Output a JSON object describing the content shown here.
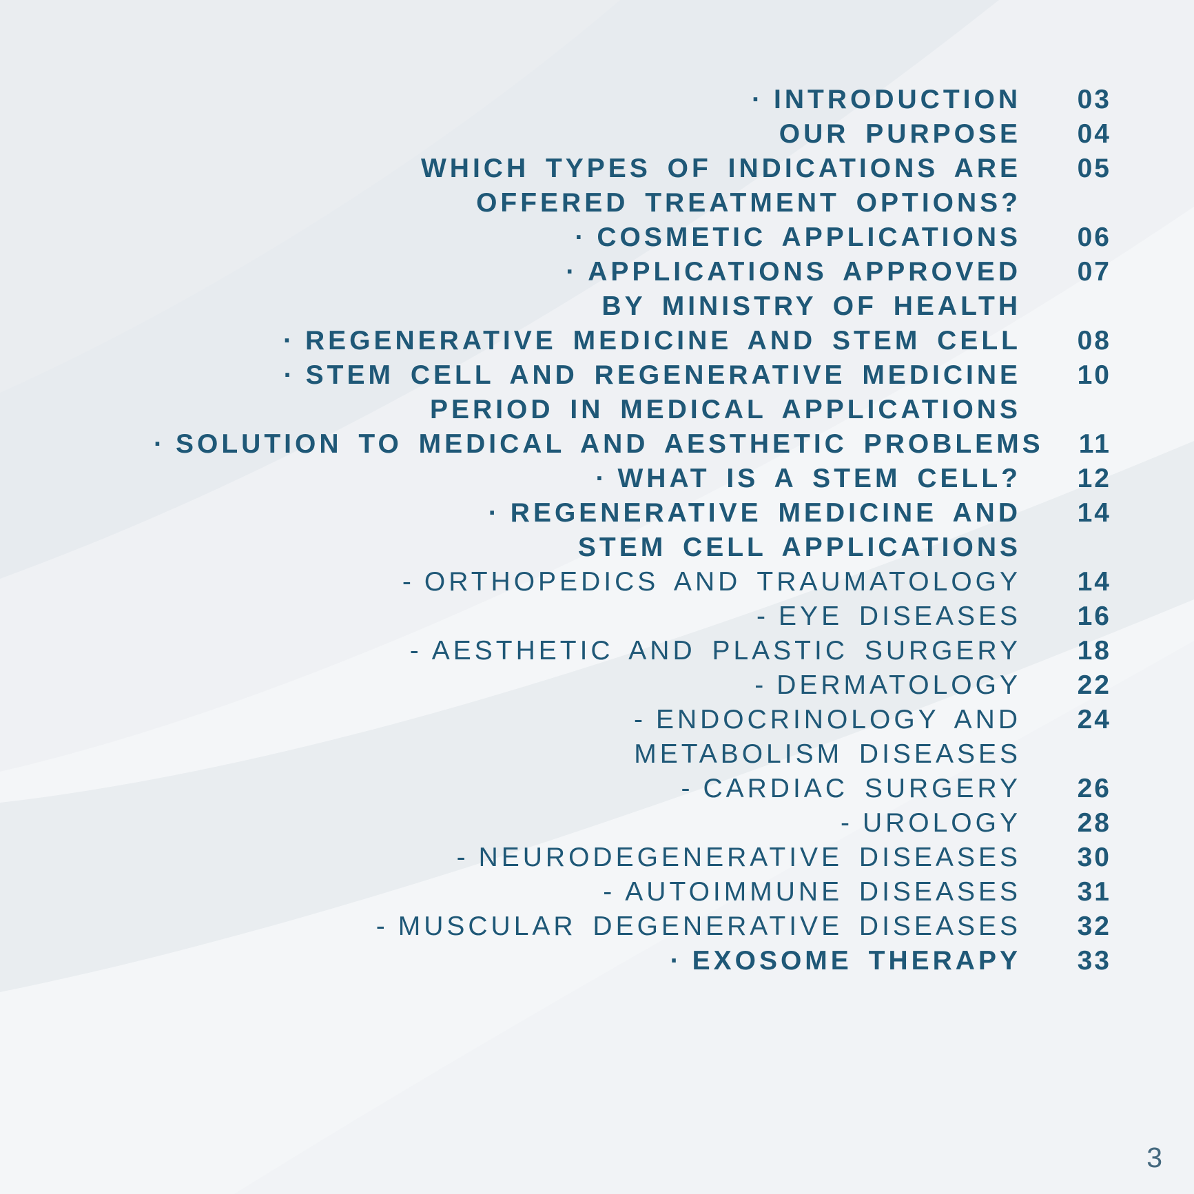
{
  "colors": {
    "text": "#1F5877",
    "footer_page_number": "#44687E",
    "background": "#EFF1F4"
  },
  "toc": {
    "entries": [
      {
        "marker": "·",
        "bold": true,
        "lines": [
          "INTRODUCTION"
        ],
        "page": "03"
      },
      {
        "marker": "",
        "bold": true,
        "lines": [
          "OUR PURPOSE"
        ],
        "page": "04"
      },
      {
        "marker": "",
        "bold": true,
        "lines": [
          "WHICH TYPES OF INDICATIONS ARE",
          "OFFERED TREATMENT OPTIONS?"
        ],
        "page": "05"
      },
      {
        "marker": "·",
        "bold": true,
        "lines": [
          "COSMETIC APPLICATIONS"
        ],
        "page": "06"
      },
      {
        "marker": "·",
        "bold": true,
        "lines": [
          "APPLICATIONS APPROVED",
          "BY MINISTRY OF HEALTH"
        ],
        "page": "07"
      },
      {
        "marker": "·",
        "bold": true,
        "lines": [
          "REGENERATIVE MEDICINE AND STEM CELL"
        ],
        "page": "08"
      },
      {
        "marker": "·",
        "bold": true,
        "lines": [
          "STEM CELL AND REGENERATIVE MEDICINE",
          "PERIOD IN MEDICAL APPLICATIONS"
        ],
        "page": "10"
      },
      {
        "marker": "·",
        "bold": true,
        "lines": [
          "SOLUTION TO MEDICAL AND AESTHETIC PROBLEMS"
        ],
        "page": "11"
      },
      {
        "marker": "·",
        "bold": true,
        "lines": [
          "WHAT IS A STEM CELL?"
        ],
        "page": "12"
      },
      {
        "marker": "·",
        "bold": true,
        "lines": [
          "REGENERATIVE MEDICINE AND",
          "STEM CELL APPLICATIONS"
        ],
        "page": "14"
      },
      {
        "marker": "-",
        "bold": false,
        "lines": [
          "ORTHOPEDICS AND TRAUMATOLOGY"
        ],
        "page": "14"
      },
      {
        "marker": "-",
        "bold": false,
        "lines": [
          "EYE DISEASES"
        ],
        "page": "16"
      },
      {
        "marker": "-",
        "bold": false,
        "lines": [
          "AESTHETIC AND PLASTIC SURGERY"
        ],
        "page": "18"
      },
      {
        "marker": "-",
        "bold": false,
        "lines": [
          "DERMATOLOGY"
        ],
        "page": "22"
      },
      {
        "marker": "-",
        "bold": false,
        "lines": [
          "ENDOCRINOLOGY AND",
          "METABOLISM DISEASES"
        ],
        "page": "24"
      },
      {
        "marker": "-",
        "bold": false,
        "lines": [
          "CARDIAC SURGERY"
        ],
        "page": "26"
      },
      {
        "marker": "-",
        "bold": false,
        "lines": [
          "UROLOGY"
        ],
        "page": "28"
      },
      {
        "marker": "-",
        "bold": false,
        "lines": [
          "NEURODEGENERATIVE DISEASES"
        ],
        "page": "30"
      },
      {
        "marker": "-",
        "bold": false,
        "lines": [
          "AUTOIMMUNE DISEASES"
        ],
        "page": "31"
      },
      {
        "marker": "-",
        "bold": false,
        "lines": [
          "MUSCULAR DEGENERATIVE DISEASES"
        ],
        "page": "32"
      },
      {
        "marker": "·",
        "bold": true,
        "lines": [
          "EXOSOME THERAPY"
        ],
        "page": "33"
      }
    ]
  },
  "footer": {
    "page_number": "3"
  }
}
